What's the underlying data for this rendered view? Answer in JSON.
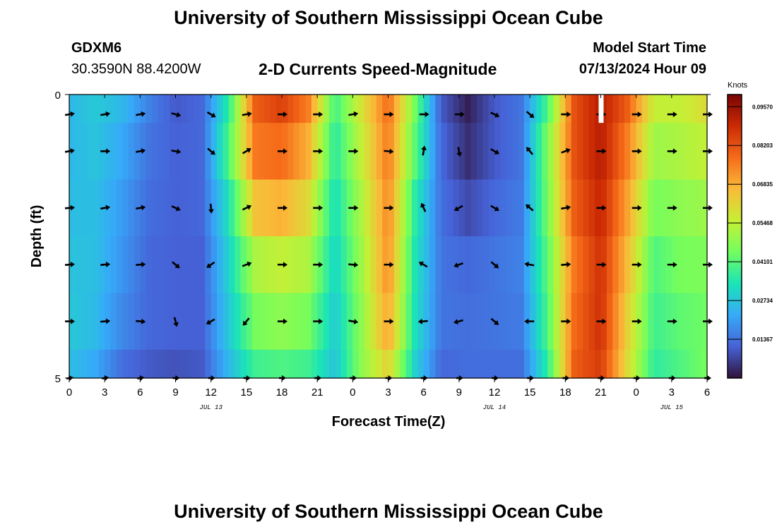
{
  "header": {
    "title": "University of Southern Mississippi Ocean Cube",
    "station_id": "GDXM6",
    "coords": "30.3590N  88.4200W",
    "chart_title": "2-D Currents Speed-Magnitude",
    "model_label": "Model Start Time",
    "model_time": "07/13/2024 Hour 09"
  },
  "footer": {
    "title": "University of Southern Mississippi Ocean Cube"
  },
  "colors": {
    "scale": [
      "#30123b",
      "#4662d7",
      "#36aaf9",
      "#1ae4b6",
      "#72fe5e",
      "#c7ef34",
      "#faba39",
      "#f66b19",
      "#cb2a04",
      "#7a0403"
    ],
    "arrow": "#000000"
  },
  "chart_data": {
    "type": "heatmap",
    "xlabel": "Forecast Time(Z)",
    "ylabel": "Depth (ft)",
    "x_ticks": [
      "0",
      "3",
      "6",
      "9",
      "12",
      "15",
      "18",
      "21",
      "0",
      "3",
      "6",
      "9",
      "12",
      "15",
      "18",
      "21",
      "0",
      "3",
      "6"
    ],
    "y_ticks": [
      "0",
      "5"
    ],
    "ylim": [
      0,
      5
    ],
    "date_labels": [
      {
        "label": "JUL 13",
        "hour": 12
      },
      {
        "label": "JUL 14",
        "hour": 36
      },
      {
        "label": "JUL 15",
        "hour": 51
      }
    ],
    "colorbar": {
      "title": "Knots",
      "min": 0,
      "max": 0.1,
      "ticks": [
        "0.09570",
        "0.08203",
        "0.06835",
        "0.05468",
        "0.04101",
        "0.02734",
        "0.01367"
      ],
      "tick_values": [
        0.0957,
        0.08203,
        0.06835,
        0.05468,
        0.04101,
        0.02734,
        0.01367
      ]
    },
    "hours": [
      0,
      54
    ],
    "depths_ft": [
      0,
      1,
      2,
      3,
      4,
      5
    ],
    "profiles": [
      [
        0.025,
        0.025,
        0.026,
        0.027,
        0.028,
        0.026
      ],
      [
        0.028,
        0.027,
        0.026,
        0.026,
        0.025,
        0.022
      ],
      [
        0.025,
        0.022,
        0.02,
        0.019,
        0.017,
        0.013
      ],
      [
        0.016,
        0.014,
        0.013,
        0.012,
        0.012,
        0.01
      ],
      [
        0.01,
        0.011,
        0.011,
        0.011,
        0.011,
        0.009
      ],
      [
        0.012,
        0.012,
        0.012,
        0.011,
        0.011,
        0.01
      ],
      [
        0.036,
        0.04,
        0.033,
        0.03,
        0.028,
        0.025
      ],
      [
        0.08,
        0.076,
        0.065,
        0.052,
        0.045,
        0.038
      ],
      [
        0.085,
        0.078,
        0.068,
        0.055,
        0.048,
        0.04
      ],
      [
        0.075,
        0.068,
        0.06,
        0.052,
        0.045,
        0.038
      ],
      [
        0.038,
        0.035,
        0.032,
        0.03,
        0.028,
        0.027
      ],
      [
        0.058,
        0.055,
        0.052,
        0.05,
        0.048,
        0.048
      ],
      [
        0.078,
        0.076,
        0.074,
        0.073,
        0.07,
        0.062
      ],
      [
        0.045,
        0.042,
        0.036,
        0.034,
        0.033,
        0.03
      ],
      [
        0.01,
        0.012,
        0.013,
        0.014,
        0.014,
        0.012
      ],
      [
        0.002,
        0.004,
        0.008,
        0.012,
        0.013,
        0.013
      ],
      [
        0.01,
        0.01,
        0.012,
        0.014,
        0.014,
        0.013
      ],
      [
        0.014,
        0.014,
        0.015,
        0.016,
        0.015,
        0.013
      ],
      [
        0.04,
        0.046,
        0.045,
        0.042,
        0.04,
        0.036
      ],
      [
        0.082,
        0.082,
        0.08,
        0.076,
        0.078,
        0.08
      ],
      [
        0.092,
        0.092,
        0.09,
        0.088,
        0.088,
        0.086
      ],
      [
        0.08,
        0.075,
        0.07,
        0.066,
        0.062,
        0.06
      ],
      [
        0.055,
        0.05,
        0.045,
        0.04,
        0.038,
        0.036
      ],
      [
        0.055,
        0.052,
        0.048,
        0.045,
        0.042,
        0.04
      ],
      [
        0.06,
        0.055,
        0.05,
        0.046,
        0.044,
        0.045
      ]
    ],
    "arrow_rows": [
      [
        0.35,
        1
      ],
      [
        1.0,
        1
      ],
      [
        2.0,
        1
      ],
      [
        3.0,
        1
      ],
      [
        4.0,
        1
      ],
      [
        5.0,
        0.55
      ]
    ],
    "arrows_hours": [
      0,
      3,
      6,
      9,
      12,
      15,
      18,
      21,
      24,
      27,
      30,
      33,
      36,
      39,
      42,
      45,
      48,
      51,
      54
    ],
    "arrow_dirs_deg": [
      [
        -10,
        -10,
        -10,
        15,
        30,
        -10,
        0,
        0,
        -10,
        0,
        0,
        0,
        25,
        40,
        0,
        0,
        0,
        0,
        0
      ],
      [
        -10,
        0,
        -10,
        10,
        40,
        -30,
        0,
        0,
        0,
        5,
        -80,
        80,
        30,
        -130,
        -20,
        0,
        0,
        0,
        0
      ],
      [
        -5,
        -10,
        -10,
        25,
        85,
        -25,
        0,
        0,
        0,
        0,
        -115,
        150,
        30,
        -140,
        -10,
        0,
        0,
        0,
        0
      ],
      [
        -5,
        -5,
        -5,
        40,
        145,
        -20,
        0,
        0,
        5,
        0,
        -150,
        160,
        40,
        -170,
        -5,
        0,
        0,
        0,
        0
      ],
      [
        0,
        -5,
        5,
        75,
        150,
        130,
        0,
        0,
        10,
        0,
        175,
        165,
        40,
        180,
        0,
        0,
        0,
        0,
        0
      ],
      [
        -10,
        -10,
        -10,
        0,
        0,
        0,
        0,
        0,
        0,
        0,
        0,
        0,
        0,
        0,
        0,
        0,
        0,
        0,
        0
      ]
    ]
  }
}
